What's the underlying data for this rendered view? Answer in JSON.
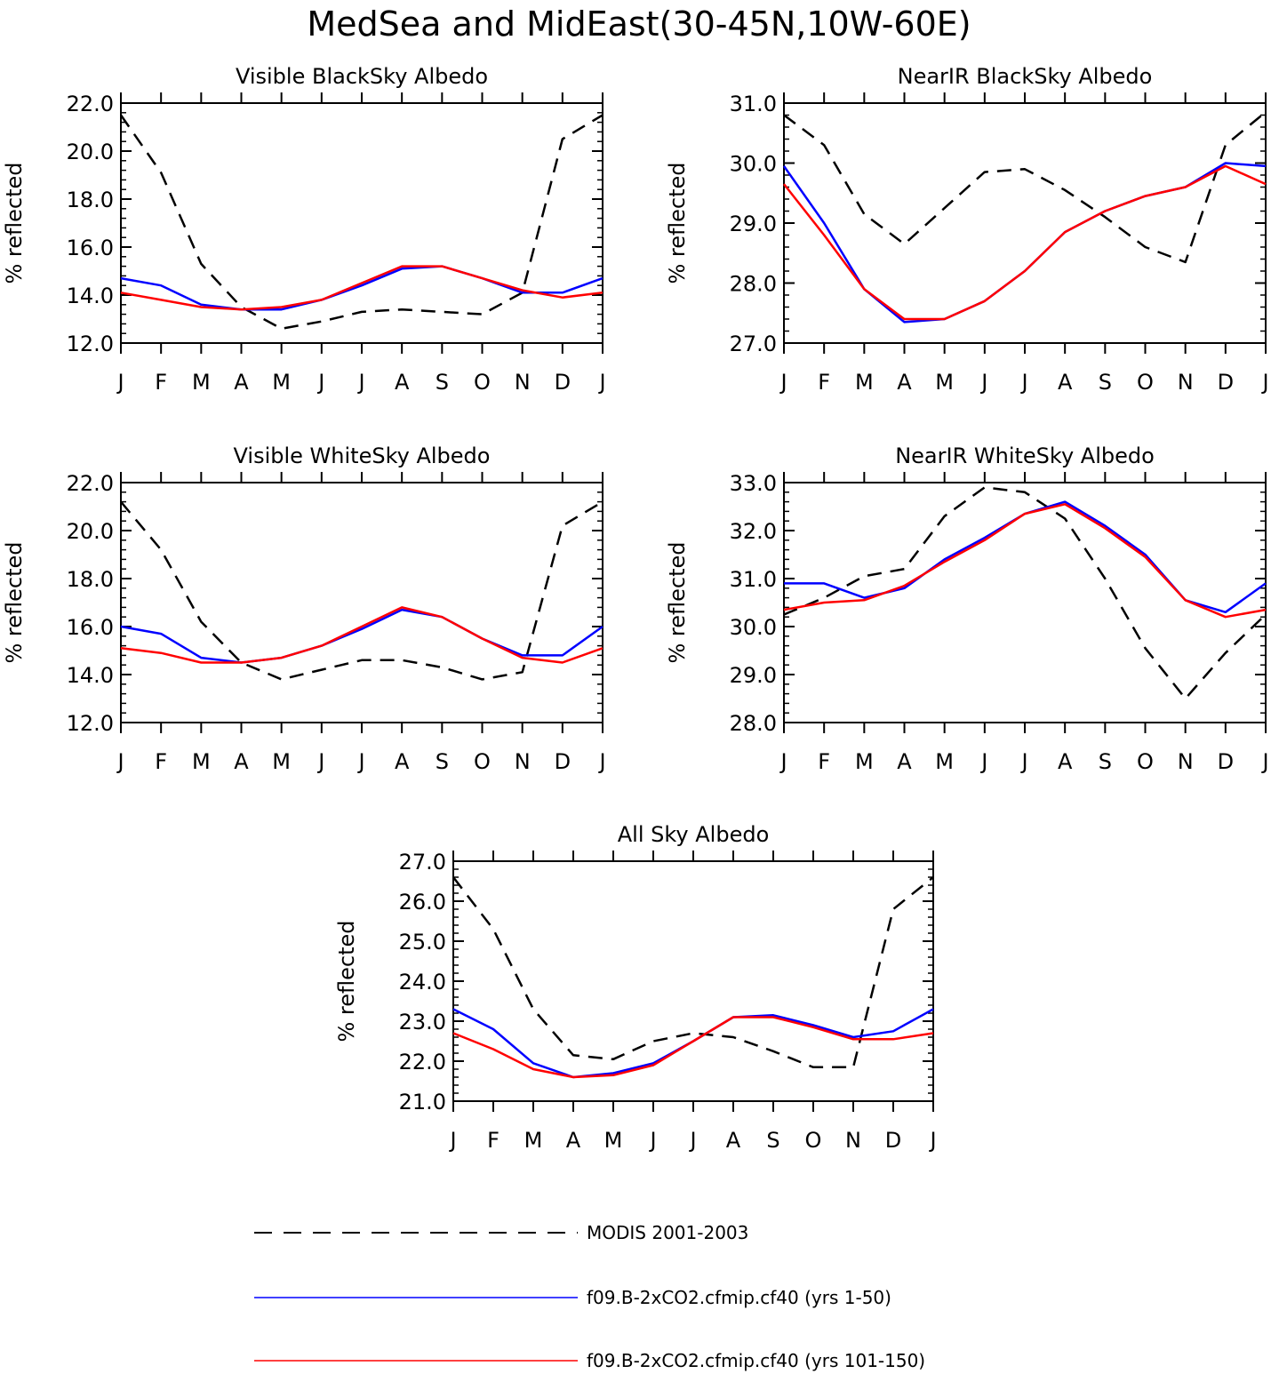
{
  "figure": {
    "title": "MedSea and MidEast(30-45N,10W-60E)"
  },
  "legend": [
    {
      "name": "MODIS 2001-2003",
      "color": "#000000",
      "dash": true
    },
    {
      "name": "f09.B-2xCO2.cfmip.cf40 (yrs 1-50)",
      "color": "#0000ff",
      "dash": false
    },
    {
      "name": "f09.B-2xCO2.cfmip.cf40 (yrs 101-150)",
      "color": "#ff0000",
      "dash": false
    }
  ],
  "chart_data": [
    {
      "type": "line",
      "title": "Visible BlackSky Albedo",
      "ylabel": "% reflected",
      "categories": [
        "J",
        "F",
        "M",
        "A",
        "M",
        "J",
        "J",
        "A",
        "S",
        "O",
        "N",
        "D",
        "J"
      ],
      "ylim": [
        12.0,
        22.0
      ],
      "yticks": [
        "12.0",
        "14.0",
        "16.0",
        "18.0",
        "20.0",
        "22.0"
      ],
      "series": [
        {
          "name": "MODIS 2001-2003",
          "color": "#000000",
          "dash": true,
          "values": [
            21.5,
            19.1,
            15.3,
            13.5,
            12.6,
            12.9,
            13.3,
            13.4,
            13.3,
            13.2,
            14.1,
            20.5,
            21.5
          ]
        },
        {
          "name": "f09.B-2xCO2.cfmip.cf40 (yrs 1-50)",
          "color": "#0000ff",
          "dash": false,
          "values": [
            14.7,
            14.4,
            13.6,
            13.4,
            13.4,
            13.8,
            14.4,
            15.1,
            15.2,
            14.7,
            14.1,
            14.1,
            14.7
          ]
        },
        {
          "name": "f09.B-2xCO2.cfmip.cf40 (yrs 101-150)",
          "color": "#ff0000",
          "dash": false,
          "values": [
            14.1,
            13.8,
            13.5,
            13.4,
            13.5,
            13.8,
            14.5,
            15.2,
            15.2,
            14.7,
            14.2,
            13.9,
            14.1
          ]
        }
      ]
    },
    {
      "type": "line",
      "title": "NearIR BlackSky Albedo",
      "ylabel": "% reflected",
      "categories": [
        "J",
        "F",
        "M",
        "A",
        "M",
        "J",
        "J",
        "A",
        "S",
        "O",
        "N",
        "D",
        "J"
      ],
      "ylim": [
        27.0,
        31.0
      ],
      "yticks": [
        "27.0",
        "28.0",
        "29.0",
        "30.0",
        "31.0"
      ],
      "series": [
        {
          "name": "MODIS 2001-2003",
          "color": "#000000",
          "dash": true,
          "values": [
            30.8,
            30.3,
            29.15,
            28.65,
            29.25,
            29.85,
            29.9,
            29.55,
            29.1,
            28.6,
            28.35,
            30.3,
            30.85
          ]
        },
        {
          "name": "f09.B-2xCO2.cfmip.cf40 (yrs 1-50)",
          "color": "#0000ff",
          "dash": false,
          "values": [
            29.95,
            29.0,
            27.9,
            27.35,
            27.4,
            27.7,
            28.2,
            28.85,
            29.2,
            29.45,
            29.6,
            30.0,
            29.95
          ]
        },
        {
          "name": "f09.B-2xCO2.cfmip.cf40 (yrs 101-150)",
          "color": "#ff0000",
          "dash": false,
          "values": [
            29.65,
            28.8,
            27.9,
            27.4,
            27.4,
            27.7,
            28.2,
            28.85,
            29.2,
            29.45,
            29.6,
            29.95,
            29.65
          ]
        }
      ]
    },
    {
      "type": "line",
      "title": "Visible WhiteSky Albedo",
      "ylabel": "% reflected",
      "categories": [
        "J",
        "F",
        "M",
        "A",
        "M",
        "J",
        "J",
        "A",
        "S",
        "O",
        "N",
        "D",
        "J"
      ],
      "ylim": [
        12.0,
        22.0
      ],
      "yticks": [
        "12.0",
        "14.0",
        "16.0",
        "18.0",
        "20.0",
        "22.0"
      ],
      "series": [
        {
          "name": "MODIS 2001-2003",
          "color": "#000000",
          "dash": true,
          "values": [
            21.2,
            19.2,
            16.2,
            14.5,
            13.8,
            14.2,
            14.6,
            14.6,
            14.3,
            13.8,
            14.1,
            20.2,
            21.2
          ]
        },
        {
          "name": "f09.B-2xCO2.cfmip.cf40 (yrs 1-50)",
          "color": "#0000ff",
          "dash": false,
          "values": [
            16.0,
            15.7,
            14.7,
            14.5,
            14.7,
            15.2,
            15.9,
            16.7,
            16.4,
            15.5,
            14.8,
            14.8,
            16.0
          ]
        },
        {
          "name": "f09.B-2xCO2.cfmip.cf40 (yrs 101-150)",
          "color": "#ff0000",
          "dash": false,
          "values": [
            15.1,
            14.9,
            14.5,
            14.5,
            14.7,
            15.2,
            16.0,
            16.8,
            16.4,
            15.5,
            14.7,
            14.5,
            15.1
          ]
        }
      ]
    },
    {
      "type": "line",
      "title": "NearIR WhiteSky Albedo",
      "ylabel": "% reflected",
      "categories": [
        "J",
        "F",
        "M",
        "A",
        "M",
        "J",
        "J",
        "A",
        "S",
        "O",
        "N",
        "D",
        "J"
      ],
      "ylim": [
        28.0,
        33.0
      ],
      "yticks": [
        "28.0",
        "29.0",
        "30.0",
        "31.0",
        "32.0",
        "33.0"
      ],
      "series": [
        {
          "name": "MODIS 2001-2003",
          "color": "#000000",
          "dash": true,
          "values": [
            30.25,
            30.6,
            31.05,
            31.2,
            32.3,
            32.9,
            32.8,
            32.25,
            31.0,
            29.55,
            28.5,
            29.45,
            30.25
          ]
        },
        {
          "name": "f09.B-2xCO2.cfmip.cf40 (yrs 1-50)",
          "color": "#0000ff",
          "dash": false,
          "values": [
            30.9,
            30.9,
            30.6,
            30.8,
            31.4,
            31.85,
            32.35,
            32.6,
            32.1,
            31.5,
            30.55,
            30.3,
            30.9
          ]
        },
        {
          "name": "f09.B-2xCO2.cfmip.cf40 (yrs 101-150)",
          "color": "#ff0000",
          "dash": false,
          "values": [
            30.35,
            30.5,
            30.55,
            30.85,
            31.35,
            31.8,
            32.35,
            32.55,
            32.05,
            31.45,
            30.55,
            30.2,
            30.35
          ]
        }
      ]
    },
    {
      "type": "line",
      "title": "All Sky Albedo",
      "ylabel": "% reflected",
      "categories": [
        "J",
        "F",
        "M",
        "A",
        "M",
        "J",
        "J",
        "A",
        "S",
        "O",
        "N",
        "D",
        "J"
      ],
      "ylim": [
        21.0,
        27.0
      ],
      "yticks": [
        "21.0",
        "22.0",
        "23.0",
        "24.0",
        "25.0",
        "26.0",
        "27.0"
      ],
      "series": [
        {
          "name": "MODIS 2001-2003",
          "color": "#000000",
          "dash": true,
          "values": [
            26.6,
            25.3,
            23.3,
            22.15,
            22.05,
            22.5,
            22.7,
            22.6,
            22.25,
            21.85,
            21.85,
            25.8,
            26.6
          ]
        },
        {
          "name": "f09.B-2xCO2.cfmip.cf40 (yrs 1-50)",
          "color": "#0000ff",
          "dash": false,
          "values": [
            23.3,
            22.8,
            21.95,
            21.6,
            21.7,
            21.95,
            22.5,
            23.1,
            23.15,
            22.9,
            22.6,
            22.75,
            23.3
          ]
        },
        {
          "name": "f09.B-2xCO2.cfmip.cf40 (yrs 101-150)",
          "color": "#ff0000",
          "dash": false,
          "values": [
            22.7,
            22.3,
            21.8,
            21.6,
            21.65,
            21.9,
            22.5,
            23.1,
            23.1,
            22.85,
            22.55,
            22.55,
            22.7
          ]
        }
      ]
    }
  ]
}
